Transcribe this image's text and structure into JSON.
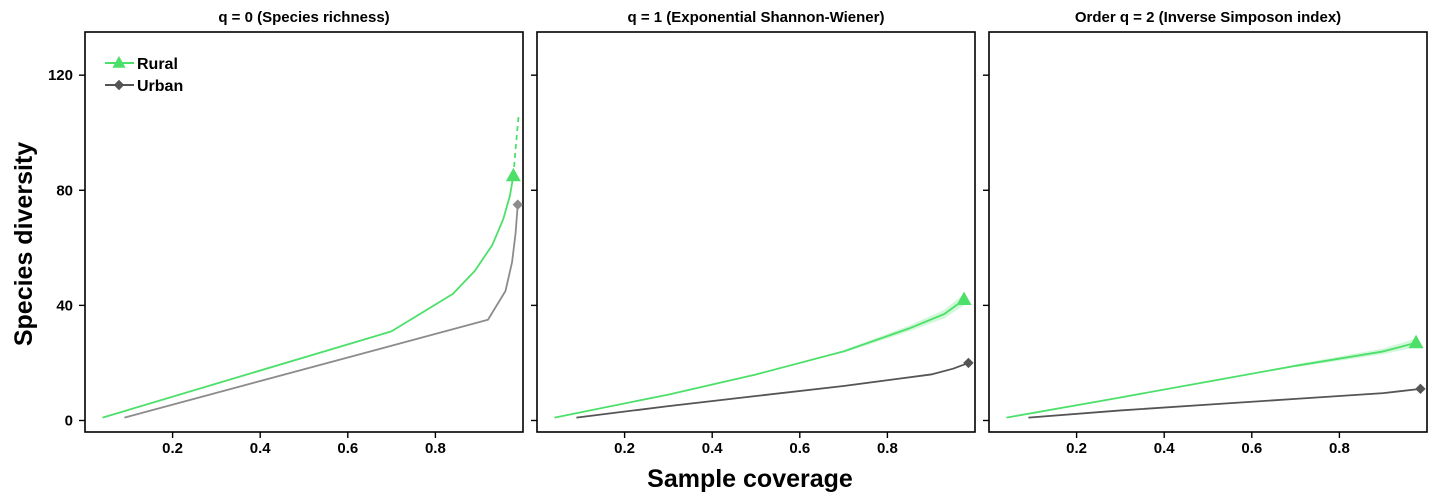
{
  "figure": {
    "ylabel": "Species diversity",
    "xlabel": "Sample coverage"
  },
  "legend": {
    "placement": "top-left",
    "entries": [
      {
        "name": "Rural",
        "color": "#4CE06A",
        "marker": "triangle"
      },
      {
        "name": "Urban",
        "color": "#555555",
        "marker": "diamond"
      }
    ]
  },
  "chart_data": [
    {
      "type": "line",
      "title": "q = 0 (Species richness)",
      "xlim": [
        0.0,
        1.0
      ],
      "ylim": [
        -4,
        135
      ],
      "xticks": [
        "0.2",
        "0.4",
        "0.6",
        "0.8"
      ],
      "xtick_values": [
        0.2,
        0.4,
        0.6,
        0.8
      ],
      "yticks": [
        "0",
        "40",
        "80",
        "120"
      ],
      "ytick_values": [
        0,
        40,
        80,
        120
      ],
      "series": [
        {
          "name": "Rural",
          "color": "#4CE06A",
          "x": [
            0.04,
            0.7,
            0.84,
            0.89,
            0.93,
            0.955,
            0.97,
            0.978
          ],
          "y": [
            1,
            31,
            44,
            52,
            61,
            70,
            78,
            85
          ],
          "extrapolated": {
            "x": [
              0.978,
              0.984,
              0.99
            ],
            "y": [
              85,
              96,
              106
            ]
          },
          "observed": {
            "x": 0.978,
            "y": 85
          },
          "band": 0
        },
        {
          "name": "Urban",
          "color": "#8C8C8C",
          "x": [
            0.09,
            0.92,
            0.96,
            0.975,
            0.983,
            0.988
          ],
          "y": [
            1,
            35,
            45,
            55,
            65,
            75
          ],
          "observed": {
            "x": 0.988,
            "y": 75
          },
          "band": 0
        }
      ]
    },
    {
      "type": "line",
      "title": "q = 1 (Exponential Shannon-Wiener)",
      "xlim": [
        0.0,
        1.0
      ],
      "ylim": [
        -4,
        135
      ],
      "xticks": [
        "0.2",
        "0.4",
        "0.6",
        "0.8"
      ],
      "xtick_values": [
        0.2,
        0.4,
        0.6,
        0.8
      ],
      "yticks": [],
      "ytick_values": [
        0,
        40,
        80,
        120
      ],
      "series": [
        {
          "name": "Rural",
          "color": "#4CE06A",
          "x": [
            0.04,
            0.3,
            0.5,
            0.7,
            0.85,
            0.93,
            0.975
          ],
          "y": [
            1,
            9,
            16,
            24,
            32,
            37,
            42
          ],
          "observed": {
            "x": 0.975,
            "y": 42
          },
          "band": 2
        },
        {
          "name": "Urban",
          "color": "#555555",
          "x": [
            0.09,
            0.3,
            0.5,
            0.7,
            0.9,
            0.95,
            0.985
          ],
          "y": [
            1,
            5,
            8.5,
            12,
            16,
            18,
            20
          ],
          "observed": {
            "x": 0.985,
            "y": 20
          },
          "band": 0
        }
      ]
    },
    {
      "type": "line",
      "title": "Order q = 2 (Inverse Simposon index)",
      "xlim": [
        0.0,
        1.0
      ],
      "ylim": [
        -4,
        135
      ],
      "xticks": [
        "0.2",
        "0.4",
        "0.6",
        "0.8"
      ],
      "xtick_values": [
        0.2,
        0.4,
        0.6,
        0.8
      ],
      "yticks": [],
      "ytick_values": [
        0,
        40,
        80,
        120
      ],
      "series": [
        {
          "name": "Rural",
          "color": "#4CE06A",
          "x": [
            0.04,
            0.3,
            0.5,
            0.7,
            0.9,
            0.975
          ],
          "y": [
            1,
            8,
            13.5,
            19,
            24,
            27
          ],
          "observed": {
            "x": 0.975,
            "y": 27
          },
          "band": 1.5
        },
        {
          "name": "Urban",
          "color": "#555555",
          "x": [
            0.09,
            0.3,
            0.5,
            0.7,
            0.9,
            0.985
          ],
          "y": [
            1,
            3.5,
            5.5,
            7.5,
            9.5,
            11
          ],
          "observed": {
            "x": 0.985,
            "y": 11
          },
          "band": 0
        }
      ]
    }
  ]
}
